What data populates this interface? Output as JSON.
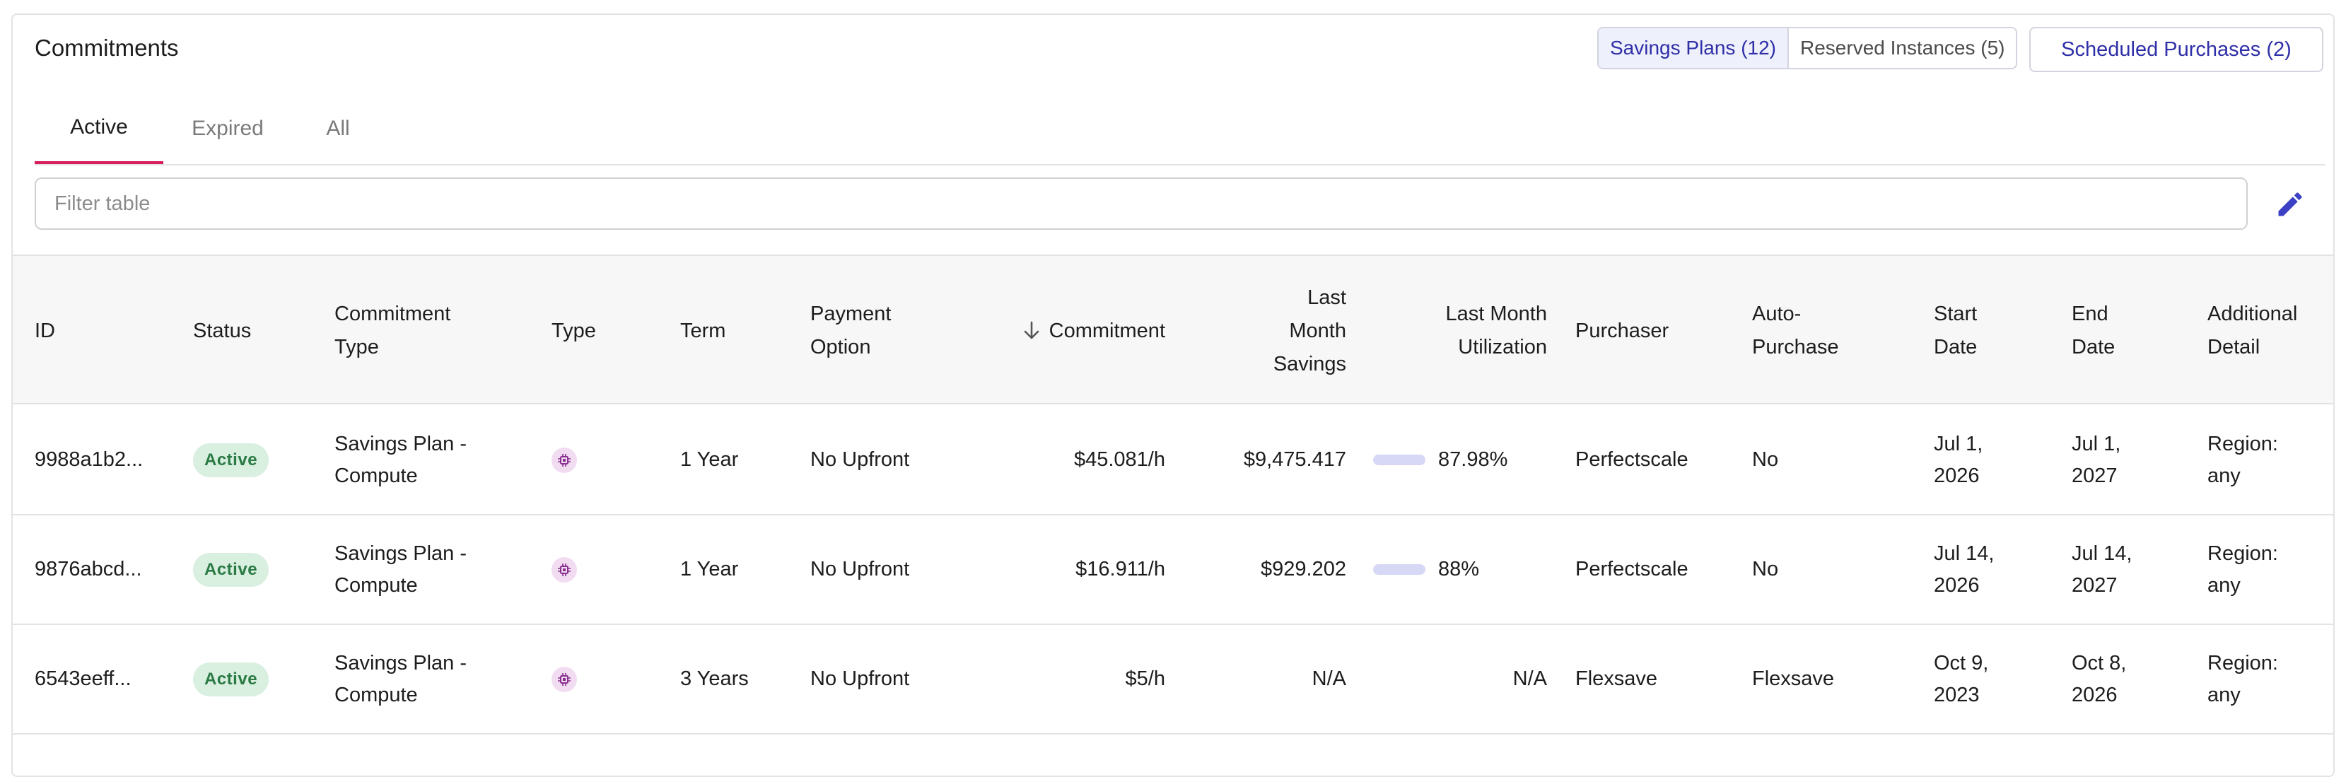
{
  "card": {
    "title": "Commitments"
  },
  "toggle": {
    "savings_plans": "Savings Plans (12)",
    "reserved_instances": "Reserved Instances (5)"
  },
  "scheduled_button": "Scheduled Purchases (2)",
  "tabs": [
    {
      "label": "Active",
      "active": true
    },
    {
      "label": "Expired",
      "active": false
    },
    {
      "label": "All",
      "active": false
    }
  ],
  "filter": {
    "placeholder": "Filter table",
    "value": ""
  },
  "table": {
    "sort": {
      "column": "Commitment",
      "direction": "descending"
    },
    "columns": [
      "ID",
      "Status",
      "Commitment\nType",
      "Type",
      "Term",
      "Payment\nOption",
      "Commitment",
      "Last\nMonth\nSavings",
      "Last Month\nUtilization",
      "Purchaser",
      "Auto-\nPurchase",
      "Start\nDate",
      "End\nDate",
      "Additional\nDetail"
    ],
    "rows": [
      {
        "id": "9988a1b2...",
        "status": "Active",
        "commitment_type": "Savings Plan -\nCompute",
        "type_icon": "compute-chip-icon",
        "term": "1 Year",
        "payment_option": "No Upfront",
        "commitment": "$45.081/h",
        "last_month_savings": "$9,475.417",
        "utilization": "87.98%",
        "utilization_pct": 87.98,
        "purchaser": "Perfectscale",
        "auto_purchase": "No",
        "start_date": "Jul 1,\n2026",
        "end_date": "Jul 1,\n2027",
        "additional_detail": "Region:\nany"
      },
      {
        "id": "9876abcd...",
        "status": "Active",
        "commitment_type": "Savings Plan -\nCompute",
        "type_icon": "compute-chip-icon",
        "term": "1 Year",
        "payment_option": "No Upfront",
        "commitment": "$16.911/h",
        "last_month_savings": "$929.202",
        "utilization": "88%",
        "utilization_pct": 88,
        "purchaser": "Perfectscale",
        "auto_purchase": "No",
        "start_date": "Jul 14,\n2026",
        "end_date": "Jul 14,\n2027",
        "additional_detail": "Region:\nany"
      },
      {
        "id": "6543eeff...",
        "status": "Active",
        "commitment_type": "Savings Plan -\nCompute",
        "type_icon": "compute-chip-icon",
        "term": "3 Years",
        "payment_option": "No Upfront",
        "commitment": "$5/h",
        "last_month_savings": "N/A",
        "utilization": "N/A",
        "utilization_pct": null,
        "purchaser": "Flexsave",
        "auto_purchase": "Flexsave",
        "start_date": "Oct 9,\n2023",
        "end_date": "Oct 8,\n2026",
        "additional_detail": "Region:\nany"
      }
    ]
  },
  "colors": {
    "accent": "#2f2fa8",
    "tab_indicator": "#d81e5b",
    "badge_bg": "#d9efe0",
    "badge_text": "#2a7a44",
    "utilization_fill": "#3b40c4",
    "type_icon_bg": "#f1dcf2"
  }
}
